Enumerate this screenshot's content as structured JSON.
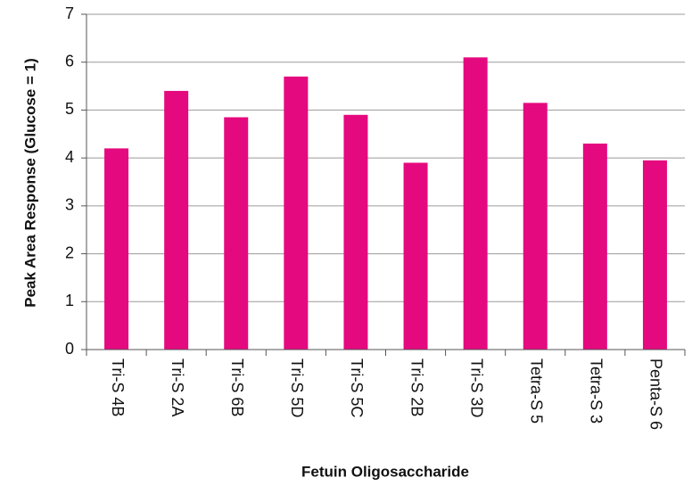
{
  "chart_data": {
    "type": "bar",
    "x_label": "Fetuin Oligosaccharide",
    "y_label": "Peak Area Response (Glucose = 1)",
    "categories": [
      "Tri-S 4B",
      "Tri-S 2A",
      "Tri-S 6B",
      "Tri-S 5D",
      "Tri-S 5C",
      "Tri-S 2B",
      "Tri-S 3D",
      "Tetra-S 5",
      "Tetra-S 3",
      "Penta-S 6"
    ],
    "values": [
      4.2,
      5.4,
      4.85,
      5.7,
      4.9,
      3.9,
      6.1,
      5.15,
      4.3,
      3.95
    ],
    "color": "#e5097f",
    "ylim": [
      0,
      7
    ],
    "yticks": [
      0,
      1,
      2,
      3,
      4,
      5,
      6,
      7
    ],
    "grid": true
  }
}
